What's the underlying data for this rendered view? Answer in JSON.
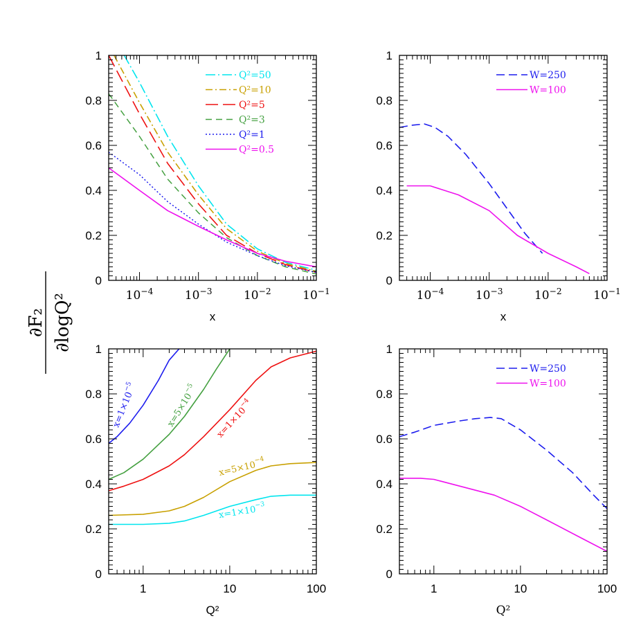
{
  "figure": {
    "shared_ylabel": {
      "numerator": "∂F₂",
      "denominator": "∂logQ²"
    }
  },
  "chart_data": [
    {
      "id": "top-left",
      "type": "line",
      "xscale": "log",
      "xlim": [
        3e-05,
        0.1
      ],
      "ylim": [
        0,
        1
      ],
      "xlabel": "x",
      "xlabel_style": "sans",
      "xticks": [
        {
          "value": 0.0001,
          "label_base": "10",
          "label_exp": "−4"
        },
        {
          "value": 0.001,
          "label_base": "10",
          "label_exp": "−3"
        },
        {
          "value": 0.01,
          "label_base": "10",
          "label_exp": "−2"
        },
        {
          "value": 0.1,
          "label_base": "10",
          "label_exp": "−1"
        }
      ],
      "yticks": [
        0,
        0.2,
        0.4,
        0.6,
        0.8,
        1
      ],
      "ytick_labels": [
        "0",
        "0.2",
        "0.4",
        "0.6",
        "0.8",
        "1"
      ],
      "legend_position": "top-right",
      "series": [
        {
          "name": "Q²=50",
          "color": "#00e5ee",
          "dash": "14,4,2,4",
          "width": 1.6,
          "x": [
            5.5e-05,
            0.0001,
            0.0003,
            0.001,
            0.003,
            0.01,
            0.03,
            0.1
          ],
          "y": [
            1.0,
            0.88,
            0.64,
            0.42,
            0.25,
            0.14,
            0.08,
            0.045
          ]
        },
        {
          "name": "Q²=10",
          "color": "#c8a000",
          "dash": "10,4,2,4",
          "width": 1.6,
          "x": [
            3.7e-05,
            0.0001,
            0.0003,
            0.001,
            0.003,
            0.01,
            0.03,
            0.1
          ],
          "y": [
            1.0,
            0.79,
            0.57,
            0.38,
            0.23,
            0.13,
            0.075,
            0.04
          ]
        },
        {
          "name": "Q²=5",
          "color": "#ee1111",
          "dash": "18,7",
          "width": 1.6,
          "x": [
            3e-05,
            0.0001,
            0.0003,
            0.001,
            0.003,
            0.01,
            0.03,
            0.1
          ],
          "y": [
            1.0,
            0.74,
            0.52,
            0.34,
            0.2,
            0.12,
            0.07,
            0.035
          ]
        },
        {
          "name": "Q²=3",
          "color": "#44a040",
          "dash": "9,6",
          "width": 1.5,
          "x": [
            3e-05,
            0.0001,
            0.0003,
            0.001,
            0.003,
            0.01,
            0.03,
            0.1
          ],
          "y": [
            0.83,
            0.64,
            0.45,
            0.3,
            0.19,
            0.11,
            0.06,
            0.028
          ]
        },
        {
          "name": "Q²=1",
          "color": "#1c1cee",
          "dash": "2,3",
          "width": 1.5,
          "x": [
            3e-05,
            0.0001,
            0.0003,
            0.001,
            0.003,
            0.01,
            0.03,
            0.1
          ],
          "y": [
            0.57,
            0.47,
            0.35,
            0.25,
            0.17,
            0.11,
            0.065,
            0.035
          ]
        },
        {
          "name": "Q²=0.5",
          "color": "#ee11ee",
          "dash": "",
          "width": 1.6,
          "x": [
            3e-05,
            0.0001,
            0.0003,
            0.001,
            0.003,
            0.01,
            0.03,
            0.1
          ],
          "y": [
            0.5,
            0.4,
            0.31,
            0.24,
            0.18,
            0.12,
            0.085,
            0.06
          ]
        }
      ]
    },
    {
      "id": "top-right",
      "type": "line",
      "xscale": "log",
      "xlim": [
        3e-05,
        0.1
      ],
      "ylim": [
        0,
        1
      ],
      "xlabel": "x",
      "xlabel_style": "sans",
      "xticks": [
        {
          "value": 0.0001,
          "label_base": "10",
          "label_exp": "−4"
        },
        {
          "value": 0.001,
          "label_base": "10",
          "label_exp": "−3"
        },
        {
          "value": 0.01,
          "label_base": "10",
          "label_exp": "−2"
        },
        {
          "value": 0.1,
          "label_base": "10",
          "label_exp": "−1"
        }
      ],
      "yticks": [
        0,
        0.2,
        0.4,
        0.6,
        0.8,
        1
      ],
      "ytick_labels": [
        "0",
        "0.2",
        "0.4",
        "0.6",
        "0.8",
        "1"
      ],
      "legend_position": "top-right",
      "series": [
        {
          "name": "W=250",
          "color": "#1c1cee",
          "dash": "12,6",
          "width": 1.6,
          "x": [
            3e-05,
            5e-05,
            8e-05,
            0.00012,
            0.0002,
            0.0004,
            0.001,
            0.002,
            0.004,
            0.008
          ],
          "y": [
            0.68,
            0.69,
            0.695,
            0.68,
            0.64,
            0.56,
            0.43,
            0.32,
            0.21,
            0.12
          ]
        },
        {
          "name": "W=100",
          "color": "#ee11ee",
          "dash": "",
          "width": 1.6,
          "x": [
            4e-05,
            0.0001,
            0.0003,
            0.001,
            0.003,
            0.01,
            0.03,
            0.05
          ],
          "y": [
            0.42,
            0.42,
            0.38,
            0.31,
            0.2,
            0.12,
            0.06,
            0.03
          ]
        }
      ]
    },
    {
      "id": "bottom-left",
      "type": "line",
      "xscale": "log",
      "xlim": [
        0.4,
        100
      ],
      "ylim": [
        0,
        1
      ],
      "xlabel": "Q²",
      "xlabel_style": "sans",
      "xticks": [
        {
          "value": 1,
          "label_base": "1",
          "label_exp": ""
        },
        {
          "value": 10,
          "label_base": "10",
          "label_exp": ""
        },
        {
          "value": 100,
          "label_base": "100",
          "label_exp": ""
        }
      ],
      "yticks": [
        0,
        0.2,
        0.4,
        0.6,
        0.8,
        1
      ],
      "ytick_labels": [
        "0",
        "0.2",
        "0.4",
        "0.6",
        "0.8",
        "1"
      ],
      "series": [
        {
          "name": "x=1×10⁻⁵",
          "color": "#1c1cee",
          "dash": "",
          "width": 1.6,
          "label_base": "x=1×10",
          "label_exp": "−5",
          "label_at": [
            0.65,
            0.745
          ],
          "label_angle": -68,
          "x": [
            0.4,
            0.5,
            0.7,
            1.0,
            1.5,
            2.0,
            2.6
          ],
          "y": [
            0.58,
            0.61,
            0.67,
            0.75,
            0.86,
            0.95,
            1.0
          ]
        },
        {
          "name": "x=5×10⁻⁵",
          "color": "#44a040",
          "dash": "",
          "width": 1.6,
          "label_base": "x=5×10",
          "label_exp": "−5",
          "label_at": [
            3.0,
            0.74
          ],
          "label_angle": -58,
          "x": [
            0.4,
            0.6,
            1.0,
            2.0,
            3.0,
            5.0,
            7.0,
            10.0
          ],
          "y": [
            0.42,
            0.45,
            0.51,
            0.62,
            0.7,
            0.82,
            0.91,
            1.0
          ]
        },
        {
          "name": "x=1×10⁻⁴",
          "color": "#ee1111",
          "dash": "",
          "width": 1.6,
          "label_base": "x=1×10",
          "label_exp": "−4",
          "label_at": [
            12.0,
            0.68
          ],
          "label_angle": -47,
          "x": [
            0.4,
            0.6,
            1.0,
            2.0,
            3.0,
            5.0,
            10.0,
            20.0,
            30.0,
            50.0,
            100.0
          ],
          "y": [
            0.37,
            0.39,
            0.42,
            0.48,
            0.53,
            0.61,
            0.73,
            0.86,
            0.92,
            0.96,
            0.99
          ]
        },
        {
          "name": "x=5×10⁻⁴",
          "color": "#c8a000",
          "dash": "",
          "width": 1.6,
          "label_base": "x=5×10",
          "label_exp": "−4",
          "label_at": [
            14.0,
            0.46
          ],
          "label_angle": -13,
          "x": [
            0.4,
            1.0,
            2.0,
            3.0,
            5.0,
            10.0,
            20.0,
            30.0,
            50.0,
            100.0
          ],
          "y": [
            0.26,
            0.265,
            0.28,
            0.3,
            0.34,
            0.41,
            0.46,
            0.48,
            0.49,
            0.495
          ]
        },
        {
          "name": "x=1×10⁻³",
          "color": "#00e5ee",
          "dash": "",
          "width": 1.6,
          "label_base": "x=1×10",
          "label_exp": "−3",
          "label_at": [
            14.0,
            0.265
          ],
          "label_angle": -9,
          "x": [
            0.4,
            1.0,
            2.0,
            3.0,
            5.0,
            10.0,
            20.0,
            30.0,
            50.0,
            100.0
          ],
          "y": [
            0.22,
            0.22,
            0.225,
            0.235,
            0.26,
            0.3,
            0.33,
            0.345,
            0.35,
            0.35
          ]
        }
      ]
    },
    {
      "id": "bottom-right",
      "type": "line",
      "xscale": "log",
      "xlim": [
        0.4,
        100
      ],
      "ylim": [
        0,
        1
      ],
      "xlabel": "Q²",
      "xlabel_style": "serif",
      "xticks": [
        {
          "value": 1,
          "label_base": "1",
          "label_exp": ""
        },
        {
          "value": 10,
          "label_base": "10",
          "label_exp": ""
        },
        {
          "value": 100,
          "label_base": "100",
          "label_exp": ""
        }
      ],
      "yticks": [
        0,
        0.2,
        0.4,
        0.6,
        0.8,
        1
      ],
      "ytick_labels": [
        "0",
        "0.2",
        "0.4",
        "0.6",
        "0.8",
        "1"
      ],
      "legend_position": "top-right",
      "series": [
        {
          "name": "W=250",
          "color": "#1c1cee",
          "dash": "12,6",
          "width": 1.6,
          "x": [
            0.4,
            0.6,
            1.0,
            2.0,
            3.0,
            4.5,
            6.0,
            10.0,
            20.0,
            40.0,
            70.0,
            100.0
          ],
          "y": [
            0.61,
            0.63,
            0.66,
            0.68,
            0.69,
            0.695,
            0.69,
            0.64,
            0.55,
            0.45,
            0.35,
            0.29
          ]
        },
        {
          "name": "W=100",
          "color": "#ee11ee",
          "dash": "",
          "width": 1.6,
          "x": [
            0.4,
            0.7,
            1.0,
            2.0,
            5.0,
            10.0,
            20.0,
            50.0,
            100.0
          ],
          "y": [
            0.425,
            0.425,
            0.42,
            0.39,
            0.35,
            0.3,
            0.24,
            0.16,
            0.1
          ]
        }
      ]
    }
  ]
}
